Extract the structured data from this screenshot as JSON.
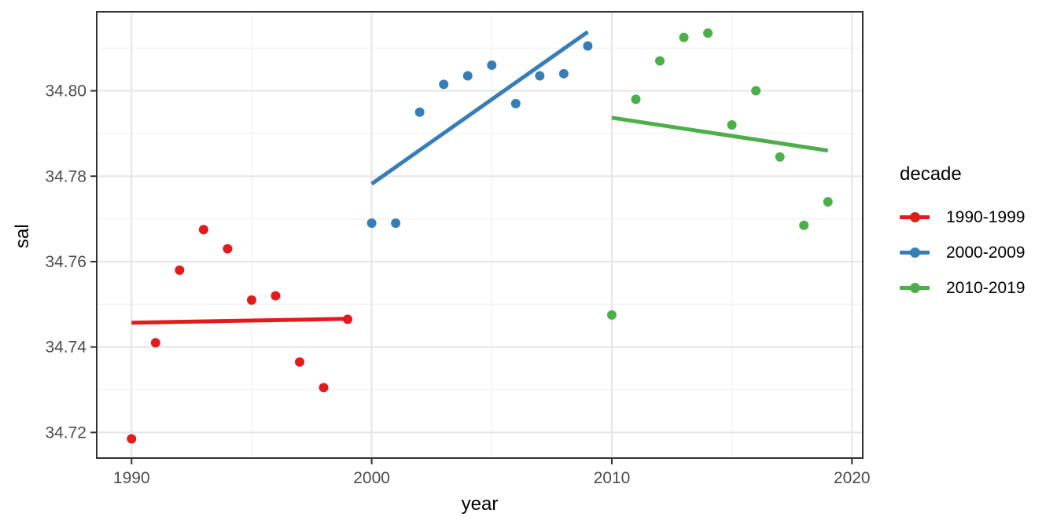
{
  "colors": {
    "background": "#FFFFFF",
    "panel_background": "#FFFFFF",
    "grid_major": "#E5E5E5",
    "grid_minor": "#F0F0F0",
    "panel_border": "#333333",
    "tick_mark": "#333333",
    "tick_label": "#4D4D4D",
    "axis_title": "#000000"
  },
  "chart_data": {
    "type": "scatter",
    "title": "",
    "xlabel": "year",
    "ylabel": "sal",
    "xlim": [
      1988.55,
      2020.45
    ],
    "ylim": [
      34.714,
      34.8185
    ],
    "grid": true,
    "x_ticks_major": [
      {
        "v": 1990,
        "label": "1990"
      },
      {
        "v": 2000,
        "label": "2000"
      },
      {
        "v": 2010,
        "label": "2010"
      },
      {
        "v": 2020,
        "label": "2020"
      }
    ],
    "x_ticks_minor": [
      1995,
      2005,
      2015
    ],
    "y_ticks_major": [
      {
        "v": 34.72,
        "label": "34.72"
      },
      {
        "v": 34.74,
        "label": "34.74"
      },
      {
        "v": 34.76,
        "label": "34.76"
      },
      {
        "v": 34.78,
        "label": "34.78"
      },
      {
        "v": 34.8,
        "label": "34.80"
      }
    ],
    "y_ticks_minor": [
      34.73,
      34.75,
      34.77,
      34.79,
      34.81
    ],
    "legend": {
      "title": "decade",
      "position": "right"
    },
    "series": [
      {
        "name": "1990-1999",
        "color": "#E41A1C",
        "x": [
          1990,
          1991,
          1992,
          1993,
          1994,
          1995,
          1996,
          1997,
          1998,
          1999
        ],
        "y": [
          34.7185,
          34.741,
          34.758,
          34.7675,
          34.763,
          34.751,
          34.752,
          34.7365,
          34.7305,
          34.7465
        ],
        "trend": {
          "x": [
            1990,
            1999
          ],
          "y": [
            34.7457,
            34.7466
          ]
        }
      },
      {
        "name": "2000-2009",
        "color": "#377EB8",
        "x": [
          2000,
          2001,
          2002,
          2003,
          2004,
          2005,
          2006,
          2007,
          2008,
          2009
        ],
        "y": [
          34.769,
          34.769,
          34.795,
          34.8015,
          34.8035,
          34.806,
          34.797,
          34.8035,
          34.804,
          34.8105
        ],
        "trend": {
          "x": [
            2000,
            2009
          ],
          "y": [
            34.7782,
            34.8138
          ]
        }
      },
      {
        "name": "2010-2019",
        "color": "#4DAF4A",
        "x": [
          2010,
          2011,
          2012,
          2013,
          2014,
          2015,
          2016,
          2017,
          2018,
          2019
        ],
        "y": [
          34.7475,
          34.798,
          34.807,
          34.8125,
          34.8135,
          34.792,
          34.8,
          34.7845,
          34.7685,
          34.774
        ],
        "trend": {
          "x": [
            2010,
            2019
          ],
          "y": [
            34.7937,
            34.786
          ]
        }
      }
    ]
  }
}
